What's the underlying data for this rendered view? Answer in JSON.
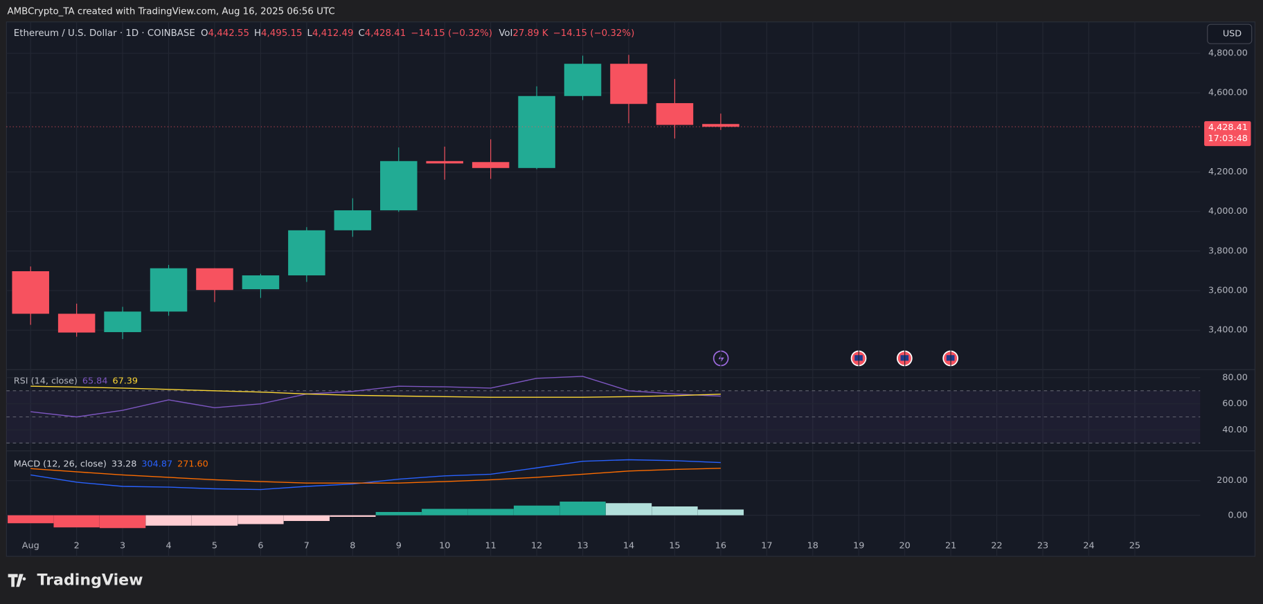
{
  "header": {
    "text": "AMBCrypto_TA created with TradingView.com, Aug 16, 2025 06:56 UTC"
  },
  "currency": "USD",
  "footer": {
    "logo": "TradingView"
  },
  "chart_data": [
    {
      "type": "candlestick",
      "legend": {
        "title": "Ethereum / U.S. Dollar · 1D · COINBASE",
        "items": [
          {
            "key": "O",
            "label": "4,442.55"
          },
          {
            "key": "H",
            "label": "4,495.15"
          },
          {
            "key": "L",
            "label": "4,412.49"
          },
          {
            "key": "C",
            "label": "4,428.41"
          }
        ],
        "change": "−14.15 (−0.32%)",
        "volume_key": "Vol",
        "volume": "27.89 K",
        "volume_change": "−14.15 (−0.32%)"
      },
      "categories": [
        "Aug",
        "2",
        "3",
        "4",
        "5",
        "6",
        "7",
        "8",
        "9",
        "10",
        "11",
        "12",
        "13",
        "14",
        "15",
        "16",
        "17",
        "18",
        "19",
        "20",
        "21",
        "22",
        "23",
        "24",
        "25"
      ],
      "open": [
        3698,
        3483,
        3390,
        3494,
        3713,
        3607,
        3677,
        3905,
        4006,
        4255,
        4250,
        4220,
        4584,
        4747,
        4548,
        4442.55,
        null,
        null,
        null,
        null,
        null,
        null,
        null,
        null,
        null
      ],
      "high": [
        3722,
        3534,
        3518,
        3730,
        3713,
        3685,
        3921,
        4067,
        4324,
        4328,
        4365,
        4633,
        4788,
        4792,
        4670,
        4495.15,
        null,
        null,
        null,
        null,
        null,
        null,
        null,
        null,
        null
      ],
      "low": [
        3427,
        3367,
        3355,
        3473,
        3542,
        3563,
        3644,
        3872,
        3998,
        4161,
        4165,
        4214,
        4564,
        4446,
        4369,
        4412.49,
        null,
        null,
        null,
        null,
        null,
        null,
        null,
        null,
        null
      ],
      "close": [
        3483,
        3388,
        3494,
        3713,
        3603,
        3677,
        3905,
        4006,
        4255,
        4243,
        4220,
        4584,
        4747,
        4544,
        4438,
        4428.41,
        null,
        null,
        null,
        null,
        null,
        null,
        null,
        null,
        null
      ],
      "up_color": "#22ab94",
      "down_color": "#f7525f",
      "ylim": [
        3204.6,
        4958.7
      ],
      "yticks": [
        {
          "value": 3400,
          "label": "3,400.00"
        },
        {
          "value": 3600,
          "label": "3,600.00"
        },
        {
          "value": 3800,
          "label": "3,800.00"
        },
        {
          "value": 4000,
          "label": "4,000.00"
        },
        {
          "value": 4200,
          "label": "4,200.00"
        },
        {
          "value": 4600,
          "label": "4,600.00"
        },
        {
          "value": 4800,
          "label": "4,800.00"
        }
      ],
      "last_price": {
        "value": 4428.41,
        "label": "4,428.41",
        "countdown": "17:03:48"
      },
      "grid": true
    },
    {
      "type": "line",
      "title": "RSI (14, close)",
      "series": [
        {
          "name": "RSI",
          "color": "#7e57c2",
          "values": [
            54,
            50,
            55,
            63,
            57,
            60,
            67.5,
            69.5,
            73.5,
            73,
            72,
            79.5,
            81,
            70,
            67.5,
            65.84
          ]
        },
        {
          "name": "RSI-based MA",
          "color": "#fdd835",
          "values": [
            73.5,
            72.8,
            72,
            71,
            70,
            69,
            67.5,
            66.5,
            66,
            65.5,
            65,
            65,
            65,
            65.5,
            66.2,
            67.39
          ]
        }
      ],
      "bands": [
        70,
        50,
        30
      ],
      "band_color": "#7e57c2",
      "ylim": [
        25.23,
        85.54
      ],
      "yticks": [
        {
          "value": 40,
          "label": "40.00"
        },
        {
          "value": 60,
          "label": "60.00"
        },
        {
          "value": 80,
          "label": "80.00"
        }
      ]
    },
    {
      "type": "combo",
      "title": "MACD (12, 26, close)",
      "series": [
        {
          "name": "Histogram",
          "style": "histogram",
          "color": "#22ab94",
          "colors": [
            "#f7525f",
            "#f7525f",
            "#f7525f",
            "#ffcdd2",
            "#ffcdd2",
            "#ffcdd2",
            "#ffcdd2",
            "#ffcdd2",
            "#22ab94",
            "#22ab94",
            "#22ab94",
            "#22ab94",
            "#22ab94",
            "#b2dfdb",
            "#b2dfdb",
            "#b2dfdb"
          ],
          "values": [
            -46,
            -70,
            -74,
            -60,
            -60,
            -51,
            -33,
            -9,
            19,
            37,
            37,
            56,
            79,
            70,
            51,
            33.28
          ],
          "value_labels": [
            null,
            null,
            null,
            null,
            null,
            null,
            null,
            null,
            null,
            null,
            null,
            null,
            null,
            null,
            null,
            "33.28"
          ]
        },
        {
          "name": "MACD",
          "style": "line",
          "color": "#2962ff",
          "values": [
            233,
            191,
            167,
            163,
            153,
            149,
            167,
            181,
            209,
            228,
            237,
            274,
            312,
            321,
            316,
            304.87
          ],
          "value_labels": [
            null,
            null,
            null,
            null,
            null,
            null,
            null,
            null,
            null,
            null,
            null,
            null,
            null,
            null,
            null,
            "304.87"
          ]
        },
        {
          "name": "Signal",
          "style": "line",
          "color": "#ff6d00",
          "values": [
            270,
            251,
            233,
            219,
            205,
            195,
            186,
            186,
            186,
            195,
            205,
            219,
            237,
            256,
            265,
            271.6
          ],
          "value_labels": [
            null,
            null,
            null,
            null,
            null,
            null,
            null,
            null,
            null,
            null,
            null,
            null,
            null,
            null,
            null,
            "271.60"
          ]
        }
      ],
      "ylim": [
        -232.6,
        362.8
      ],
      "yticks": [
        {
          "value": 0,
          "label": "0.00"
        },
        {
          "value": 200,
          "label": "200.00"
        }
      ]
    }
  ]
}
